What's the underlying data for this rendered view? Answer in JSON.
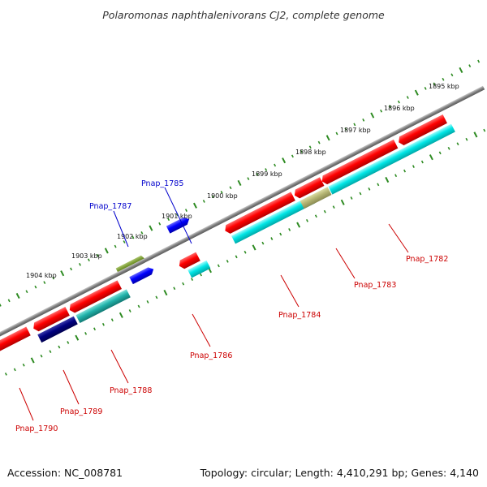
{
  "title": "Polaromonas naphthalenivorans CJ2, complete genome",
  "footer": {
    "accession": "Accession: NC_008781",
    "summary": "Topology: circular; Length: 4,410,291 bp; Genes: 4,140"
  },
  "ticks": [
    "1895 kbp",
    "1896 kbp",
    "1897 kbp",
    "1898 kbp",
    "1899 kbp",
    "1900 kbp",
    "1901 kbp",
    "1902 kbp",
    "1903 kbp",
    "1904 kbp"
  ],
  "genes": [
    {
      "name": "Pnap_1782",
      "color": "#cc0000"
    },
    {
      "name": "Pnap_1783",
      "color": "#cc0000"
    },
    {
      "name": "Pnap_1784",
      "color": "#cc0000"
    },
    {
      "name": "Pnap_1785",
      "color": "#0000cc"
    },
    {
      "name": "Pnap_1786",
      "color": "#cc0000"
    },
    {
      "name": "Pnap_1787",
      "color": "#0000cc"
    },
    {
      "name": "Pnap_1788",
      "color": "#cc0000"
    },
    {
      "name": "Pnap_1789",
      "color": "#cc0000"
    },
    {
      "name": "Pnap_1790",
      "color": "#cc0000"
    }
  ],
  "colors": {
    "cds_forward": "#ff0000",
    "cds_reverse": "#0000ff",
    "cds_dark": "#000080",
    "rna_orf": "#00e5e5",
    "orf_teal": "#20b2aa",
    "orf_olive": "#6b8e23",
    "overlap": "#b5b574",
    "backbone": "#808080",
    "tick": "#2e8b22"
  }
}
